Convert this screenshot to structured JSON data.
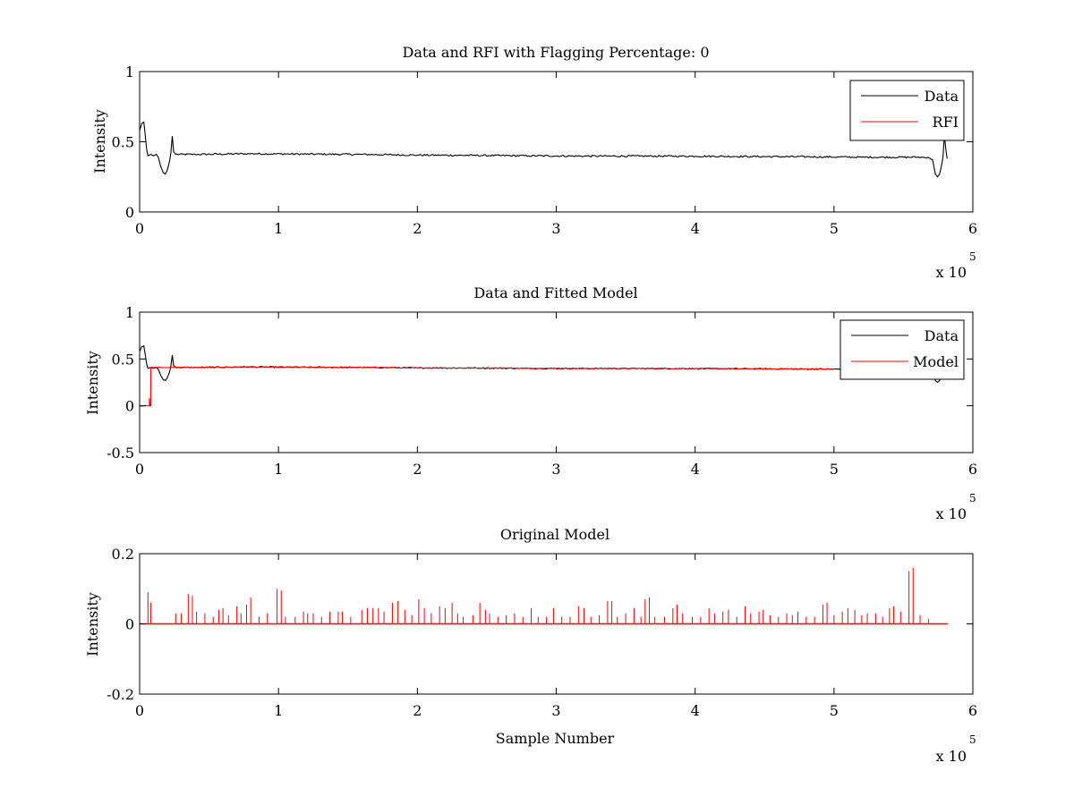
{
  "figure": {
    "background": "#ffffff",
    "axis_color": "#000000"
  },
  "chart_data": [
    {
      "type": "line",
      "title": "Data and RFI with Flagging Percentage: 0",
      "xlabel": "",
      "ylabel": "Intensity",
      "xlim": [
        0,
        600000
      ],
      "ylim": [
        0,
        1
      ],
      "xticks": [
        0,
        100000,
        200000,
        300000,
        400000,
        500000,
        600000
      ],
      "xtick_labels": [
        "0",
        "1",
        "2",
        "3",
        "4",
        "5",
        "6"
      ],
      "yticks": [
        0,
        0.5,
        1
      ],
      "ytick_labels": [
        "0",
        "0.5",
        "1"
      ],
      "x_multiplier": {
        "base": "x 10",
        "exponent": "5"
      },
      "grid": false,
      "legend": {
        "location": "top-right",
        "entries": [
          "Data",
          "RFI"
        ]
      },
      "series": [
        {
          "name": "Data",
          "color": "#000000",
          "noise": 0.006,
          "points": [
            [
              0,
              0.58
            ],
            [
              1500,
              0.63
            ],
            [
              3000,
              0.64
            ],
            [
              4000,
              0.55
            ],
            [
              5000,
              0.45
            ],
            [
              6000,
              0.4
            ],
            [
              8000,
              0.41
            ],
            [
              10000,
              0.4
            ],
            [
              12000,
              0.41
            ],
            [
              13500,
              0.39
            ],
            [
              15000,
              0.33
            ],
            [
              17000,
              0.28
            ],
            [
              18500,
              0.27
            ],
            [
              20000,
              0.3
            ],
            [
              21500,
              0.36
            ],
            [
              22500,
              0.42
            ],
            [
              23500,
              0.54
            ],
            [
              24500,
              0.43
            ],
            [
              26000,
              0.41
            ],
            [
              40000,
              0.41
            ],
            [
              80000,
              0.415
            ],
            [
              120000,
              0.412
            ],
            [
              160000,
              0.41
            ],
            [
              200000,
              0.405
            ],
            [
              240000,
              0.403
            ],
            [
              280000,
              0.4
            ],
            [
              320000,
              0.398
            ],
            [
              360000,
              0.398
            ],
            [
              400000,
              0.397
            ],
            [
              440000,
              0.395
            ],
            [
              480000,
              0.393
            ],
            [
              520000,
              0.39
            ],
            [
              560000,
              0.39
            ],
            [
              568000,
              0.389
            ],
            [
              571000,
              0.37
            ],
            [
              573000,
              0.27
            ],
            [
              574500,
              0.25
            ],
            [
              576000,
              0.27
            ],
            [
              577000,
              0.31
            ],
            [
              578500,
              0.39
            ],
            [
              579500,
              0.55
            ],
            [
              580500,
              0.45
            ],
            [
              581500,
              0.38
            ]
          ]
        },
        {
          "name": "RFI",
          "color": "#ff0000",
          "points": []
        }
      ]
    },
    {
      "type": "line",
      "title": "Data and Fitted Model",
      "xlabel": "",
      "ylabel": "Intensity",
      "xlim": [
        0,
        600000
      ],
      "ylim": [
        -0.5,
        1
      ],
      "xticks": [
        0,
        100000,
        200000,
        300000,
        400000,
        500000,
        600000
      ],
      "xtick_labels": [
        "0",
        "1",
        "2",
        "3",
        "4",
        "5",
        "6"
      ],
      "yticks": [
        -0.5,
        0,
        0.5,
        1
      ],
      "ytick_labels": [
        "-0.5",
        "0",
        "0.5",
        "1"
      ],
      "x_multiplier": {
        "base": "x 10",
        "exponent": "5"
      },
      "grid": false,
      "legend": {
        "location": "top-right",
        "entries": [
          "Data",
          "Model"
        ]
      },
      "series": [
        {
          "name": "Data",
          "color": "#000000",
          "noise": 0.006,
          "points": [
            [
              0,
              0.58
            ],
            [
              1500,
              0.63
            ],
            [
              3000,
              0.64
            ],
            [
              4000,
              0.55
            ],
            [
              5000,
              0.45
            ],
            [
              6000,
              0.4
            ],
            [
              8000,
              0.41
            ],
            [
              10000,
              0.4
            ],
            [
              12000,
              0.41
            ],
            [
              13500,
              0.39
            ],
            [
              15000,
              0.33
            ],
            [
              17000,
              0.28
            ],
            [
              18500,
              0.27
            ],
            [
              20000,
              0.3
            ],
            [
              21500,
              0.36
            ],
            [
              22500,
              0.42
            ],
            [
              23500,
              0.54
            ],
            [
              24500,
              0.43
            ],
            [
              26000,
              0.41
            ],
            [
              40000,
              0.41
            ],
            [
              80000,
              0.415
            ],
            [
              120000,
              0.412
            ],
            [
              160000,
              0.41
            ],
            [
              200000,
              0.405
            ],
            [
              240000,
              0.403
            ],
            [
              280000,
              0.4
            ],
            [
              320000,
              0.398
            ],
            [
              360000,
              0.398
            ],
            [
              400000,
              0.397
            ],
            [
              440000,
              0.395
            ],
            [
              480000,
              0.393
            ],
            [
              520000,
              0.39
            ],
            [
              560000,
              0.39
            ],
            [
              568000,
              0.389
            ],
            [
              571000,
              0.37
            ],
            [
              573000,
              0.27
            ],
            [
              574500,
              0.25
            ],
            [
              576000,
              0.27
            ],
            [
              577000,
              0.31
            ],
            [
              578500,
              0.39
            ],
            [
              579500,
              0.55
            ],
            [
              580500,
              0.45
            ],
            [
              581500,
              0.38
            ]
          ]
        },
        {
          "name": "Model",
          "color": "#ff0000",
          "noise": 0.004,
          "points": [
            [
              0,
              0
            ],
            [
              7000,
              0
            ],
            [
              7000,
              0.08
            ],
            [
              7500,
              0
            ],
            [
              8000,
              0
            ],
            [
              8100,
              0.41
            ],
            [
              40000,
              0.41
            ],
            [
              80000,
              0.415
            ],
            [
              120000,
              0.412
            ],
            [
              160000,
              0.41
            ],
            [
              200000,
              0.405
            ],
            [
              240000,
              0.403
            ],
            [
              280000,
              0.4
            ],
            [
              320000,
              0.398
            ],
            [
              360000,
              0.398
            ],
            [
              400000,
              0.397
            ],
            [
              440000,
              0.395
            ],
            [
              480000,
              0.393
            ],
            [
              500000,
              0.392
            ]
          ]
        }
      ]
    },
    {
      "type": "line",
      "title": "Original Model",
      "xlabel": "Sample Number",
      "ylabel": "Intensity",
      "xlim": [
        0,
        600000
      ],
      "ylim": [
        -0.2,
        0.2
      ],
      "xticks": [
        0,
        100000,
        200000,
        300000,
        400000,
        500000,
        600000
      ],
      "xtick_labels": [
        "0",
        "1",
        "2",
        "3",
        "4",
        "5",
        "6"
      ],
      "yticks": [
        -0.2,
        0,
        0.2
      ],
      "ytick_labels": [
        "-0.2",
        "0",
        "0.2"
      ],
      "x_multiplier": {
        "base": "x 10",
        "exponent": "5"
      },
      "grid": false,
      "legend": null,
      "baseline": {
        "x_start": 0,
        "x_end": 582000,
        "y": 0
      },
      "series": [
        {
          "name": "",
          "color": "#ff0000",
          "spikes": [
            [
              6000,
              0.09
            ],
            [
              8000,
              0.06
            ],
            [
              26000,
              0.03
            ],
            [
              30000,
              0.03
            ],
            [
              35000,
              0.085
            ],
            [
              38000,
              0.08
            ],
            [
              41000,
              0.035
            ],
            [
              47000,
              0.03
            ],
            [
              53000,
              0.02
            ],
            [
              57000,
              0.04
            ],
            [
              60000,
              0.045
            ],
            [
              64000,
              0.025
            ],
            [
              70000,
              0.05
            ],
            [
              73000,
              0.03
            ],
            [
              77000,
              0.055
            ],
            [
              80000,
              0.075
            ],
            [
              86000,
              0.02
            ],
            [
              92000,
              0.03
            ],
            [
              99000,
              0.1
            ],
            [
              102000,
              0.095
            ],
            [
              105000,
              0.02
            ],
            [
              112000,
              0.02
            ],
            [
              118000,
              0.035
            ],
            [
              121000,
              0.03
            ],
            [
              125000,
              0.03
            ],
            [
              131000,
              0.02
            ],
            [
              137000,
              0.035
            ],
            [
              143000,
              0.035
            ],
            [
              146000,
              0.035
            ],
            [
              152000,
              0.02
            ],
            [
              160000,
              0.04
            ],
            [
              164000,
              0.045
            ],
            [
              168000,
              0.045
            ],
            [
              172000,
              0.045
            ],
            [
              176000,
              0.035
            ],
            [
              182000,
              0.06
            ],
            [
              186000,
              0.065
            ],
            [
              191000,
              0.04
            ],
            [
              196000,
              0.025
            ],
            [
              201000,
              0.07
            ],
            [
              205000,
              0.045
            ],
            [
              210000,
              0.03
            ],
            [
              216000,
              0.05
            ],
            [
              220000,
              0.045
            ],
            [
              225000,
              0.06
            ],
            [
              229000,
              0.03
            ],
            [
              233000,
              0.02
            ],
            [
              240000,
              0.025
            ],
            [
              245000,
              0.06
            ],
            [
              249000,
              0.04
            ],
            [
              252000,
              0.03
            ],
            [
              258000,
              0.02
            ],
            [
              264000,
              0.025
            ],
            [
              270000,
              0.03
            ],
            [
              276000,
              0.02
            ],
            [
              282000,
              0.045
            ],
            [
              287000,
              0.02
            ],
            [
              293000,
              0.02
            ],
            [
              298000,
              0.045
            ],
            [
              304000,
              0.02
            ],
            [
              310000,
              0.02
            ],
            [
              316000,
              0.05
            ],
            [
              320000,
              0.045
            ],
            [
              325000,
              0.02
            ],
            [
              331000,
              0.025
            ],
            [
              337000,
              0.065
            ],
            [
              340000,
              0.065
            ],
            [
              344000,
              0.02
            ],
            [
              350000,
              0.03
            ],
            [
              356000,
              0.045
            ],
            [
              361000,
              0.02
            ],
            [
              364000,
              0.07
            ],
            [
              367000,
              0.075
            ],
            [
              371000,
              0.02
            ],
            [
              378000,
              0.02
            ],
            [
              384000,
              0.045
            ],
            [
              387000,
              0.055
            ],
            [
              391000,
              0.03
            ],
            [
              398000,
              0.02
            ],
            [
              404000,
              0.02
            ],
            [
              410000,
              0.045
            ],
            [
              414000,
              0.03
            ],
            [
              420000,
              0.035
            ],
            [
              424000,
              0.04
            ],
            [
              430000,
              0.02
            ],
            [
              436000,
              0.05
            ],
            [
              440000,
              0.03
            ],
            [
              446000,
              0.035
            ],
            [
              449000,
              0.04
            ],
            [
              454000,
              0.025
            ],
            [
              460000,
              0.02
            ],
            [
              466000,
              0.03
            ],
            [
              470000,
              0.025
            ],
            [
              474000,
              0.035
            ],
            [
              480000,
              0.02
            ],
            [
              486000,
              0.02
            ],
            [
              492000,
              0.055
            ],
            [
              495000,
              0.06
            ],
            [
              500000,
              0.025
            ],
            [
              506000,
              0.035
            ],
            [
              510000,
              0.045
            ],
            [
              515000,
              0.04
            ],
            [
              520000,
              0.025
            ],
            [
              524000,
              0.03
            ],
            [
              530000,
              0.03
            ],
            [
              535000,
              0.02
            ],
            [
              540000,
              0.045
            ],
            [
              543000,
              0.05
            ],
            [
              548000,
              0.035
            ],
            [
              554000,
              0.15
            ],
            [
              557000,
              0.16
            ],
            [
              562000,
              0.025
            ],
            [
              568000,
              0.015
            ]
          ]
        }
      ]
    }
  ]
}
